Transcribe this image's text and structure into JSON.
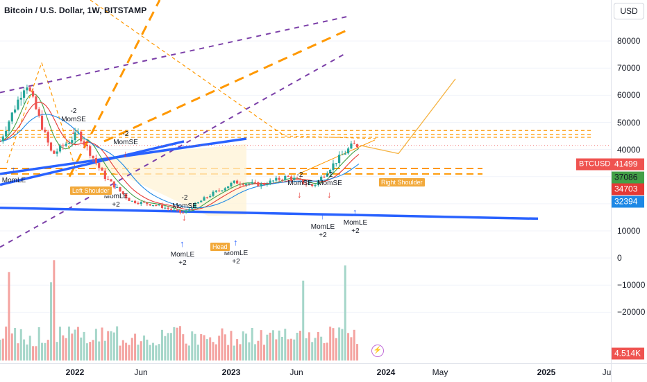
{
  "title": "Bitcoin / U.S. Dollar, 1W, BITSTAMP",
  "currency_button": "USD",
  "colors": {
    "up": "#26a69a",
    "down": "#ef5350",
    "trend_blue": "#2962ff",
    "orange": "#ff9800",
    "purple": "#7b3fa8",
    "ma_red": "#e53935",
    "ma_green": "#43a047",
    "ma_blue": "#1e88e5",
    "volume_up": "#a5d6c9",
    "volume_down": "#f4a3a0"
  },
  "price_axis": {
    "ticks": [
      "80000",
      "70000",
      "60000",
      "50000",
      "40000",
      "30000",
      "20000",
      "10000",
      "0",
      "−10000",
      "−20000"
    ],
    "tags": [
      {
        "label": "41499",
        "kind": "last-price"
      },
      {
        "label": "37086",
        "kind": "ma-green"
      },
      {
        "label": "34703",
        "kind": "ma-red"
      },
      {
        "label": "32394",
        "kind": "ma-blue"
      },
      {
        "label": "4.514K",
        "kind": "volume"
      }
    ],
    "ticker_label": "BTCUSD"
  },
  "time_axis": {
    "ticks": [
      "2022",
      "Jun",
      "2023",
      "Jun",
      "2024",
      "May",
      "2025",
      "Ju"
    ]
  },
  "annotations": {
    "momentum_signals": [
      {
        "line1": "-2",
        "line2": "MomSE"
      },
      {
        "line1": "-2",
        "line2": "MomSE"
      },
      {
        "line1": "MomLE",
        "line2": ""
      },
      {
        "line1": "MomLE",
        "line2": "+2"
      },
      {
        "line1": "-2",
        "line2": "MomSE"
      },
      {
        "line1": "MomLE",
        "line2": "+2"
      },
      {
        "line1": "MomLE",
        "line2": "+2"
      },
      {
        "line1": "-2",
        "line2": "MomSE"
      },
      {
        "line1": "-2",
        "line2": "MomSE"
      },
      {
        "line1": "MomLE",
        "line2": "+2"
      },
      {
        "line1": "MomLE",
        "line2": "+2"
      }
    ],
    "pattern_labels": [
      "Left Shoulder",
      "Head",
      "Right Shoulder"
    ]
  },
  "chart_data": {
    "type": "candlestick",
    "interval": "1W",
    "y_scale": {
      "min": -25000,
      "max": 90000
    },
    "price_series_approx": [
      {
        "date": "2021-09",
        "close": 43000
      },
      {
        "date": "2021-11",
        "close": 65000
      },
      {
        "date": "2022-01",
        "close": 38000
      },
      {
        "date": "2022-03",
        "close": 46000
      },
      {
        "date": "2022-05",
        "close": 30000
      },
      {
        "date": "2022-07",
        "close": 21000
      },
      {
        "date": "2022-09",
        "close": 19500
      },
      {
        "date": "2022-11",
        "close": 16500
      },
      {
        "date": "2023-01",
        "close": 23000
      },
      {
        "date": "2023-03",
        "close": 28000
      },
      {
        "date": "2023-05",
        "close": 27000
      },
      {
        "date": "2023-07",
        "close": 30000
      },
      {
        "date": "2023-09",
        "close": 26500
      },
      {
        "date": "2023-11",
        "close": 37000
      },
      {
        "date": "2023-12",
        "close": 41499
      }
    ],
    "horizontal_levels": [
      47000,
      45500,
      44500,
      33000,
      31000
    ],
    "projection": [
      41499,
      38500,
      66000
    ],
    "last_price": 41499
  }
}
